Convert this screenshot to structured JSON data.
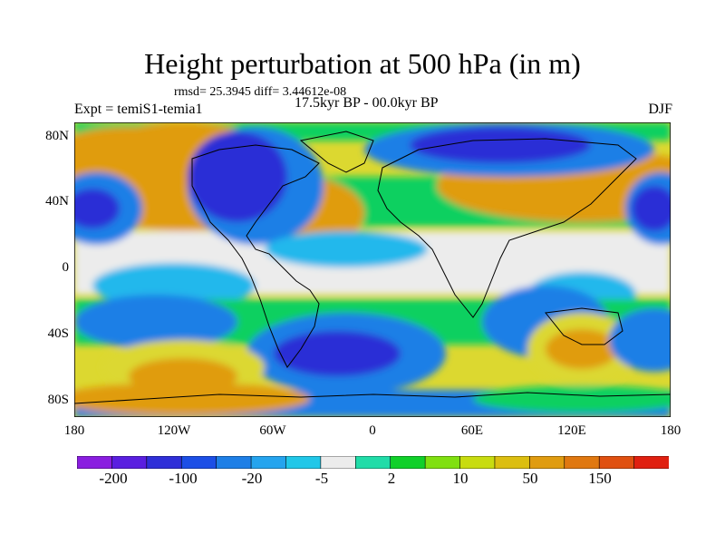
{
  "header": {
    "title": "Height perturbation at 500 hPa (in m)",
    "rmsd": "rmsd= 25.3945 diff= 3.44612e-08",
    "experiment": "Expt = temiS1-temia1",
    "period": "17.5kyr BP - 00.0kyr BP",
    "season": "DJF"
  },
  "axes": {
    "y_ticks": [
      "80N",
      "40N",
      "0",
      "40S",
      "80S"
    ],
    "x_ticks": [
      "180",
      "120W",
      "60W",
      "0",
      "60E",
      "120E",
      "180"
    ]
  },
  "colorbar": {
    "labels": [
      "-200",
      "-100",
      "-20",
      "-5",
      "2",
      "10",
      "50",
      "150"
    ],
    "colors": [
      "#8a1ee0",
      "#5a1fe0",
      "#2f2fd8",
      "#1c4fe6",
      "#1e7fe6",
      "#25a4ee",
      "#21c7e8",
      "#ececec",
      "#21dca8",
      "#10d02a",
      "#80e010",
      "#c8dc10",
      "#dcbe10",
      "#e09c10",
      "#e07810",
      "#e05010",
      "#e02010"
    ]
  },
  "map_colors": {
    "neg_strong": "#2a2ed6",
    "neg_mid": "#1e7fe6",
    "neg_weak": "#22b8ec",
    "neutral": "#ececec",
    "pos_weak": "#10d060",
    "pos_mid": "#a8dc10",
    "pos_strong": "#e09c10",
    "coast": "#000000"
  }
}
